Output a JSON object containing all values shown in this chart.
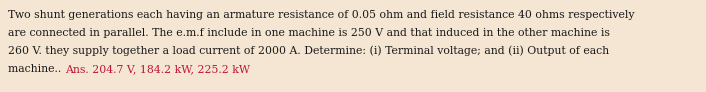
{
  "text_lines": [
    "Two shunt generations each having an armature resistance of 0.05 ohm and field resistance 40 ohms respectively",
    "are connected in parallel. The e.m.f include in one machine is 250 V and that induced in the other machine is",
    "260 V. they supply together a load current of 2000 A. Determine: (i) Terminal voltage; and (ii) Output of each",
    "machine.. "
  ],
  "ans_text": "Ans. 204.7 V, 184.2 kW, 225.2 kW",
  "main_color": "#1a1a1a",
  "ans_color": "#c0133a",
  "background_color": "#f5e6d3",
  "font_size": 7.8,
  "font_family": "DejaVu Serif"
}
